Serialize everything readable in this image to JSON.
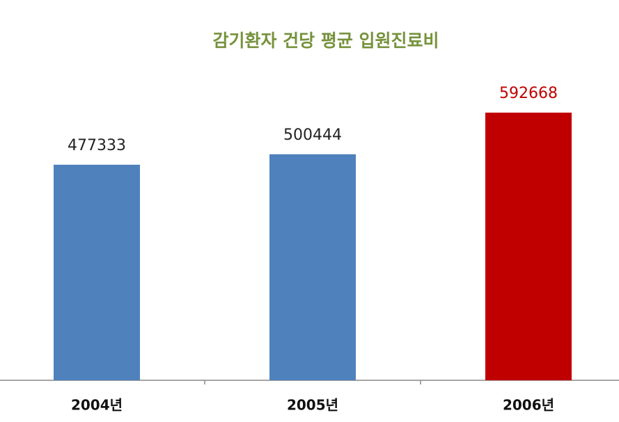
{
  "chart_data": {
    "type": "bar",
    "title": "감기환자 건당 평균 입원진료비",
    "categories": [
      "2004년",
      "2005년",
      "2006년"
    ],
    "values": [
      477333,
      500444,
      592668
    ],
    "colors": [
      "#4f81bd",
      "#4f81bd",
      "#c00000"
    ],
    "value_label_colors": [
      "#222222",
      "#222222",
      "#c00000"
    ],
    "title_color": "#76923c"
  }
}
